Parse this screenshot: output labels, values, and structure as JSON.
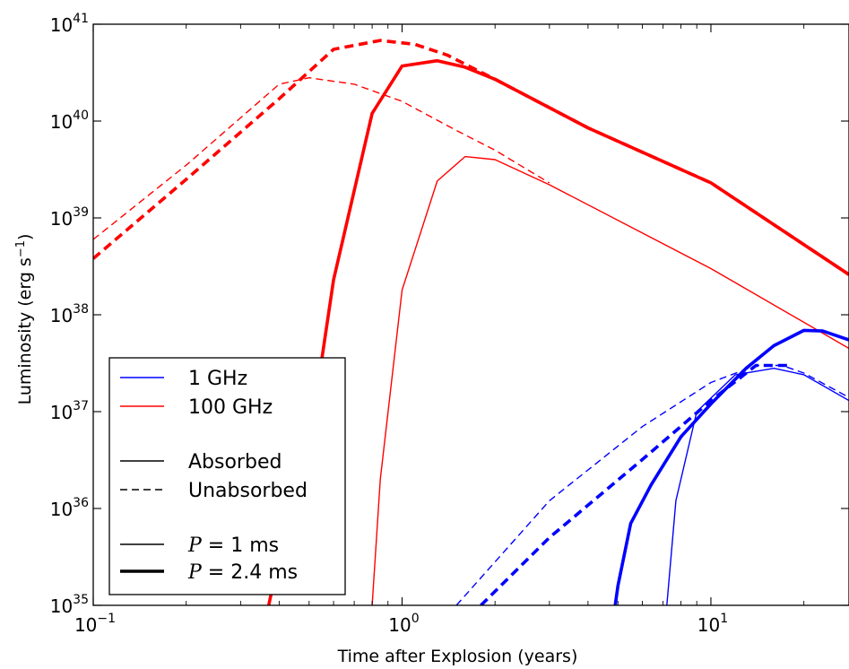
{
  "chart_data": {
    "type": "line",
    "title": "",
    "xlabel": "Time after Explosion (years)",
    "ylabel_main": "Luminosity (erg s",
    "ylabel_sup": "−1",
    "ylabel_close": ")",
    "xscale": "log",
    "yscale": "log",
    "xlim": [
      0.1,
      28
    ],
    "ylim": [
      1e+35,
      1e+41
    ],
    "x_ticks": [
      {
        "value": 0.1,
        "base": "10",
        "exp": "−1"
      },
      {
        "value": 1,
        "base": "10",
        "exp": "0"
      },
      {
        "value": 10,
        "base": "10",
        "exp": "1"
      }
    ],
    "y_ticks": [
      {
        "value": 1e+35,
        "base": "10",
        "exp": "35"
      },
      {
        "value": 1e+36,
        "base": "10",
        "exp": "36"
      },
      {
        "value": 1e+37,
        "base": "10",
        "exp": "37"
      },
      {
        "value": 1e+38,
        "base": "10",
        "exp": "38"
      },
      {
        "value": 1e+39,
        "base": "10",
        "exp": "39"
      },
      {
        "value": 1e+40,
        "base": "10",
        "exp": "40"
      },
      {
        "value": 1e+41,
        "base": "10",
        "exp": "41"
      }
    ],
    "colors": {
      "1 GHz": "#0000ff",
      "100 GHz": "#ff0000"
    },
    "series": [
      {
        "frequency": "100 GHz",
        "absorption": "Unabsorbed",
        "P": "1 ms",
        "points": [
          [
            0.1,
            6e+38
          ],
          [
            0.2,
            3.5e+39
          ],
          [
            0.4,
            2.4e+40
          ],
          [
            0.5,
            2.8e+40
          ],
          [
            0.7,
            2.4e+40
          ],
          [
            1.0,
            1.6e+40
          ],
          [
            1.5,
            8e+39
          ],
          [
            2.0,
            5e+39
          ],
          [
            3.0,
            2.3e+39
          ]
        ]
      },
      {
        "frequency": "100 GHz",
        "absorption": "Unabsorbed",
        "P": "2.4 ms",
        "points": [
          [
            0.1,
            3.8e+38
          ],
          [
            0.2,
            2.5e+39
          ],
          [
            0.4,
            1.7e+40
          ],
          [
            0.6,
            5.5e+40
          ],
          [
            0.85,
            6.8e+40
          ],
          [
            1.1,
            6.2e+40
          ],
          [
            1.4,
            4.8e+40
          ],
          [
            2.0,
            2.7e+40
          ],
          [
            4.0,
            8.5e+39
          ],
          [
            10,
            2.3e+39
          ],
          [
            28,
            2.6e+38
          ]
        ]
      },
      {
        "frequency": "100 GHz",
        "absorption": "Absorbed",
        "P": "1 ms",
        "points": [
          [
            0.8,
            1e+35
          ],
          [
            0.85,
            2e+36
          ],
          [
            1.0,
            1.8e+38
          ],
          [
            1.3,
            2.4e+39
          ],
          [
            1.6,
            4.3e+39
          ],
          [
            2.0,
            4e+39
          ],
          [
            3.0,
            2.2e+39
          ],
          [
            10,
            3e+38
          ],
          [
            28,
            4.5e+37
          ]
        ]
      },
      {
        "frequency": "100 GHz",
        "absorption": "Absorbed",
        "P": "2.4 ms",
        "points": [
          [
            0.37,
            1e+35
          ],
          [
            0.55,
            3.5e+37
          ],
          [
            0.6,
            2.3e+38
          ],
          [
            0.8,
            1.2e+40
          ],
          [
            1.0,
            3.7e+40
          ],
          [
            1.3,
            4.2e+40
          ],
          [
            1.6,
            3.6e+40
          ],
          [
            2.0,
            2.7e+40
          ],
          [
            4.0,
            8.5e+39
          ],
          [
            10,
            2.3e+39
          ],
          [
            28,
            2.6e+38
          ]
        ]
      },
      {
        "frequency": "1 GHz",
        "absorption": "Unabsorbed",
        "P": "1 ms",
        "points": [
          [
            1.5,
            1e+35
          ],
          [
            3.0,
            1.2e+36
          ],
          [
            6.0,
            7e+36
          ],
          [
            10,
            2e+37
          ],
          [
            14,
            3e+37
          ],
          [
            17,
            3e+37
          ],
          [
            20,
            2.5e+37
          ],
          [
            28,
            1.4e+37
          ]
        ]
      },
      {
        "frequency": "1 GHz",
        "absorption": "Unabsorbed",
        "P": "2.4 ms",
        "points": [
          [
            1.8,
            1e+35
          ],
          [
            3.0,
            5e+35
          ],
          [
            6.0,
            3.2e+36
          ],
          [
            10,
            1.3e+37
          ],
          [
            14,
            3e+37
          ],
          [
            18,
            3e+37
          ]
        ]
      },
      {
        "frequency": "1 GHz",
        "absorption": "Absorbed",
        "P": "1 ms",
        "points": [
          [
            7.2,
            1e+35
          ],
          [
            7.7,
            1.2e+36
          ],
          [
            9.0,
            1e+37
          ],
          [
            12,
            2.4e+37
          ],
          [
            16,
            2.8e+37
          ],
          [
            20,
            2.4e+37
          ],
          [
            28,
            1.3e+37
          ]
        ]
      },
      {
        "frequency": "1 GHz",
        "absorption": "Absorbed",
        "P": "2.4 ms",
        "points": [
          [
            4.9,
            1e+35
          ],
          [
            5.0,
            1.6e+35
          ],
          [
            5.5,
            7e+35
          ],
          [
            6.4,
            1.75e+36
          ],
          [
            8.0,
            5.5e+36
          ],
          [
            10,
            1.2e+37
          ],
          [
            13,
            2.8e+37
          ],
          [
            16,
            4.8e+37
          ],
          [
            20,
            6.9e+37
          ],
          [
            23,
            6.8e+37
          ],
          [
            28,
            5.5e+37
          ]
        ]
      }
    ],
    "legend": {
      "placement": "lower-left",
      "entries": [
        {
          "label": "1 GHz",
          "style": "color-blue"
        },
        {
          "label": "100 GHz",
          "style": "color-red"
        },
        {
          "label": "Absorbed",
          "style": "solid"
        },
        {
          "label": "Unabsorbed",
          "style": "dashed"
        },
        {
          "label_var": "P",
          "label_rest": " = 1 ms",
          "style": "thin"
        },
        {
          "label_var": "P",
          "label_rest": " = 2.4 ms",
          "style": "thick"
        }
      ]
    }
  }
}
